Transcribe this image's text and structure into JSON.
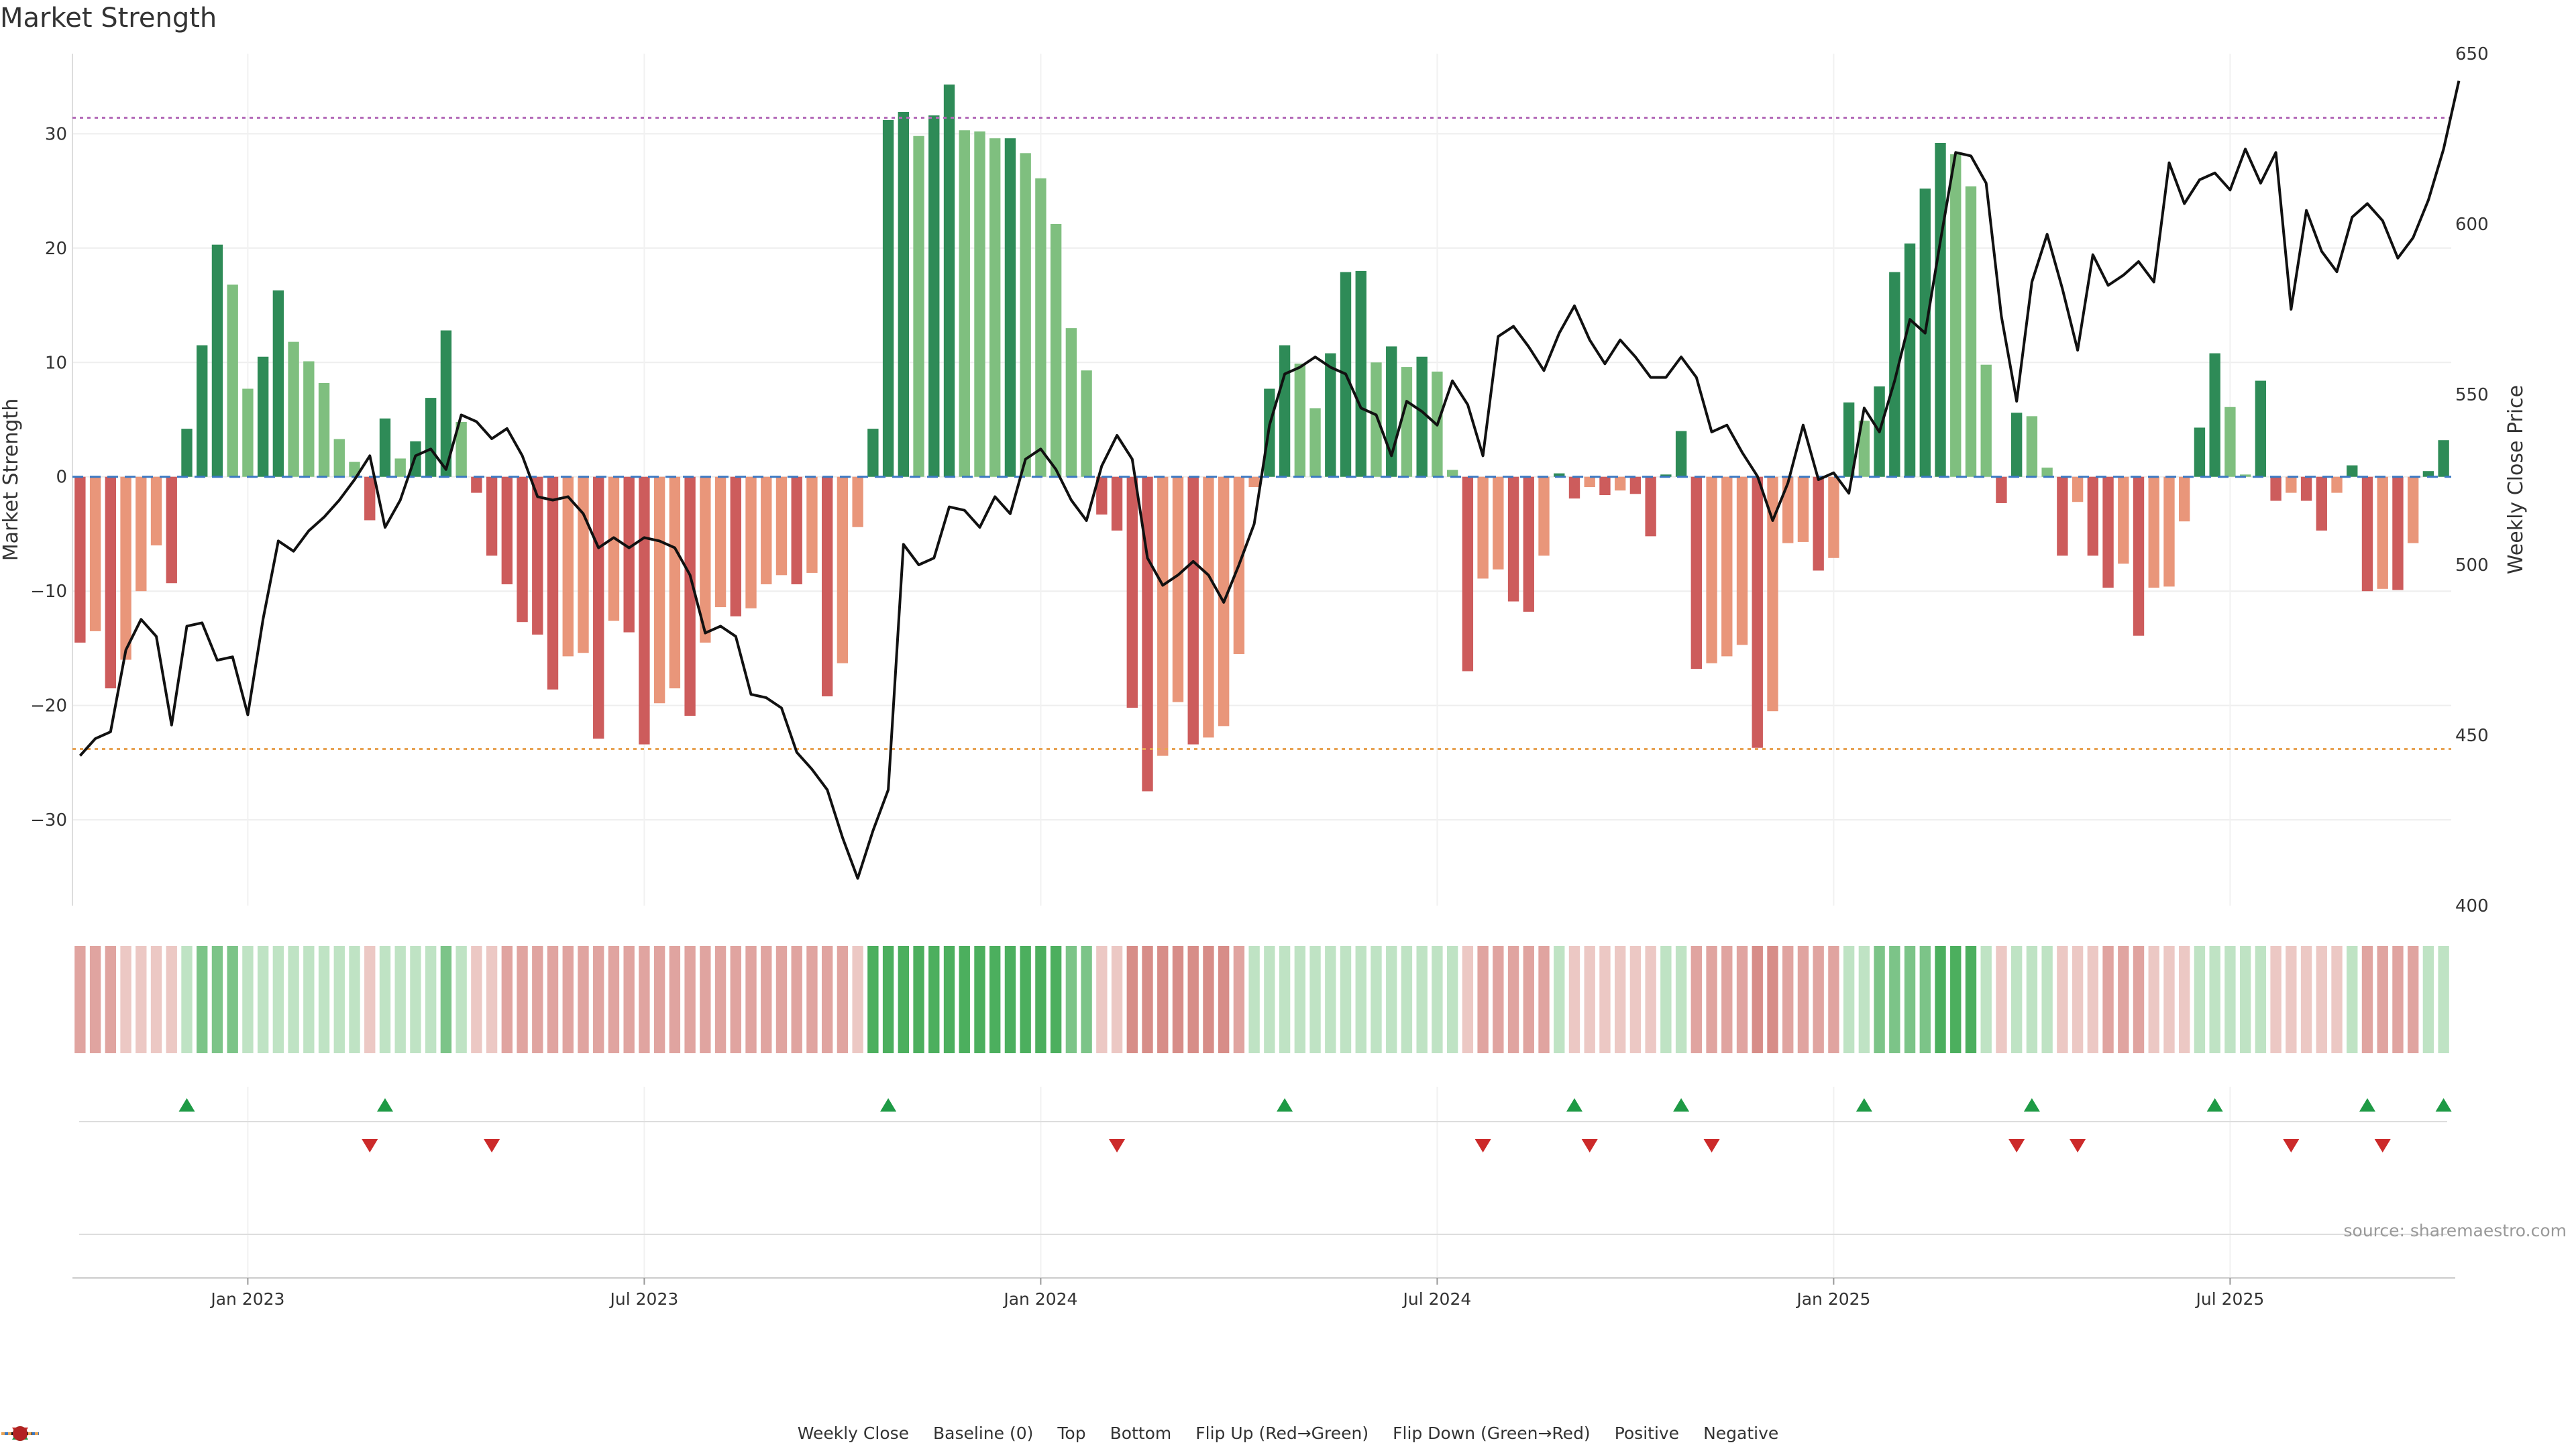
{
  "chart_data": {
    "type": "bar",
    "title": "Market Strength",
    "ylabel": "Market Strength",
    "y2label": "Weekly Close Price",
    "ylim": [
      -37.5,
      37.0
    ],
    "y2lim": [
      400,
      650
    ],
    "yticks": [
      -30,
      -20,
      -10,
      0,
      10,
      20,
      30
    ],
    "y2ticks": [
      400,
      450,
      500,
      550,
      600,
      650
    ],
    "top_line": 31.4,
    "bottom_line": -23.8,
    "x_tick_labels": [
      {
        "label": "Jan 2023",
        "week": 11
      },
      {
        "label": "Jul 2023",
        "week": 37
      },
      {
        "label": "Jan 2024",
        "week": 63
      },
      {
        "label": "Jul 2024",
        "week": 89
      },
      {
        "label": "Jan 2025",
        "week": 115
      },
      {
        "label": "Jul 2025",
        "week": 141
      }
    ],
    "weeks": 156,
    "strength": [
      -14.5,
      -13.5,
      -18.5,
      -16,
      -10,
      -6,
      -9.3,
      4.2,
      11.5,
      20.3,
      16.8,
      7.7,
      10.5,
      16.3,
      11.8,
      10.1,
      8.2,
      3.3,
      1.3,
      -3.8,
      5.1,
      1.6,
      3.1,
      6.9,
      12.8,
      4.8,
      -1.4,
      -6.9,
      -9.4,
      -12.7,
      -13.8,
      -18.6,
      -15.7,
      -15.4,
      -22.9,
      -12.6,
      -13.6,
      -23.4,
      -19.8,
      -18.5,
      -20.9,
      -14.5,
      -11.4,
      -12.2,
      -11.5,
      -9.4,
      -8.6,
      -9.4,
      -8.4,
      -19.2,
      -16.3,
      -4.4,
      4.2,
      31.2,
      31.9,
      29.8,
      31.6,
      34.3,
      30.3,
      30.2,
      29.6,
      29.6,
      28.3,
      26.1,
      22.1,
      13.0,
      9.3,
      -3.3,
      -4.7,
      -20.2,
      -27.5,
      -24.4,
      -19.7,
      -23.4,
      -22.8,
      -21.8,
      -15.5,
      -0.9,
      7.7,
      11.5,
      9.9,
      6.0,
      10.8,
      17.9,
      18.0,
      10.0,
      11.4,
      9.6,
      10.5,
      9.2,
      0.6,
      -17.0,
      -8.9,
      -8.1,
      -10.9,
      -11.8,
      -6.9,
      0.3,
      -1.9,
      -0.9,
      -1.6,
      -1.2,
      -1.5,
      -5.2,
      0.2,
      4.0,
      -16.8,
      -16.3,
      -15.7,
      -14.7,
      -23.7,
      -20.5,
      -5.8,
      -5.7,
      -8.2,
      -7.1,
      6.5,
      4.9,
      7.9,
      17.9,
      20.4,
      25.2,
      29.2,
      28.2,
      25.4,
      9.8,
      -2.3,
      5.6,
      5.3,
      0.8,
      -6.9,
      -2.2,
      -6.9,
      -9.7,
      -7.6,
      -13.9,
      -9.7,
      -9.6,
      -3.9,
      4.3,
      10.8,
      6.1,
      0.2,
      8.4,
      -2.1,
      -1.4,
      -2.1,
      -4.7,
      -1.4,
      1.0,
      -10.0,
      -9.8,
      -9.9,
      -5.8,
      0.5,
      3.2
    ],
    "close": [
      444,
      449,
      451,
      475,
      484,
      479,
      453,
      482,
      483,
      472,
      473,
      456,
      484,
      507,
      504,
      510,
      514,
      519,
      525,
      532,
      511,
      519,
      532,
      534,
      528,
      544,
      542,
      537,
      540,
      532,
      520,
      519,
      520,
      515,
      505,
      508,
      505,
      508,
      507,
      505,
      497,
      480,
      482,
      479,
      462,
      461,
      458,
      445,
      440,
      434,
      420,
      408,
      422,
      434,
      506,
      500,
      502,
      517,
      516,
      511,
      520,
      515,
      531,
      534,
      528,
      519,
      513,
      529,
      538,
      531,
      502,
      494,
      497,
      501,
      497,
      489,
      500,
      512,
      541,
      556,
      558,
      561,
      558,
      556,
      546,
      544,
      532,
      548,
      545,
      541,
      554,
      547,
      532,
      567,
      570,
      564,
      557,
      568,
      576,
      566,
      559,
      566,
      561,
      555,
      555,
      561,
      555,
      539,
      541,
      533,
      526,
      513,
      524,
      541,
      525,
      527,
      521,
      546,
      539,
      554,
      572,
      568,
      595,
      621,
      620,
      612,
      573,
      548,
      583,
      597,
      581,
      563,
      591,
      582,
      585,
      589,
      583,
      618,
      606,
      613,
      615,
      610,
      622,
      612,
      621,
      575,
      604,
      592,
      586,
      602,
      606,
      601,
      590,
      596,
      607,
      622,
      642
    ],
    "score_strip": [
      -2,
      -2,
      -2,
      -1,
      -1,
      -1,
      -1,
      1,
      2,
      2,
      2,
      1,
      1,
      1,
      1,
      1,
      1,
      1,
      1,
      -1,
      1,
      1,
      1,
      1,
      2,
      1,
      -1,
      -1,
      -2,
      -2,
      -2,
      -2,
      -2,
      -2,
      -2,
      -2,
      -2,
      -2,
      -2,
      -2,
      -2,
      -2,
      -2,
      -2,
      -2,
      -2,
      -2,
      -2,
      -2,
      -2,
      -2,
      -1,
      3,
      3,
      3,
      3,
      3,
      3,
      3,
      3,
      3,
      3,
      3,
      3,
      3,
      2,
      2,
      -1,
      -1,
      -3,
      -3,
      -3,
      -3,
      -3,
      -3,
      -3,
      -2,
      1,
      1,
      1,
      1,
      1,
      1,
      1,
      1,
      1,
      1,
      1,
      1,
      1,
      1,
      -1,
      -2,
      -2,
      -2,
      -2,
      -2,
      1,
      -1,
      -1,
      -1,
      -1,
      -1,
      -1,
      1,
      1,
      -2,
      -2,
      -2,
      -2,
      -3,
      -3,
      -2,
      -2,
      -2,
      -2,
      1,
      1,
      2,
      2,
      2,
      2,
      3,
      3,
      3,
      1,
      -1,
      1,
      1,
      1,
      -1,
      -1,
      -1,
      -2,
      -2,
      -2,
      -1,
      -1,
      -1,
      1,
      1,
      1,
      1,
      1,
      -1,
      -1,
      -1,
      -1,
      -1,
      1,
      -2,
      -2,
      -2,
      -2,
      1,
      1
    ],
    "flips_up": [
      7,
      20,
      53,
      79,
      98,
      105,
      117,
      128,
      140,
      150,
      155
    ],
    "flips_down": [
      19,
      27,
      68,
      92,
      99,
      107,
      127,
      131,
      145,
      151
    ],
    "legend": [
      {
        "label": "Weekly Close",
        "kind": "line",
        "color": "#111111"
      },
      {
        "label": "Baseline (0)",
        "kind": "dashed",
        "color": "#3a78c3"
      },
      {
        "label": "Top",
        "kind": "dotted",
        "color": "#b36ab8"
      },
      {
        "label": "Bottom",
        "kind": "dotted",
        "color": "#e8a354"
      },
      {
        "label": "Flip Up (Red→Green)",
        "kind": "up",
        "color": "#1e9a45"
      },
      {
        "label": "Flip Down (Green→Red)",
        "kind": "down",
        "color": "#cc2a2a"
      },
      {
        "label": "Positive",
        "kind": "dot",
        "color": "#2f8a3a"
      },
      {
        "label": "Negative",
        "kind": "dot",
        "color": "#b22222"
      }
    ],
    "colors": {
      "pos_rising": "#2e8b57",
      "pos_falling": "#7fbf7f",
      "neg_falling": "#cd5c5c",
      "neg_rising": "#e9967a",
      "close_line": "#111111"
    }
  },
  "source_note": "source: sharemaestro.com"
}
